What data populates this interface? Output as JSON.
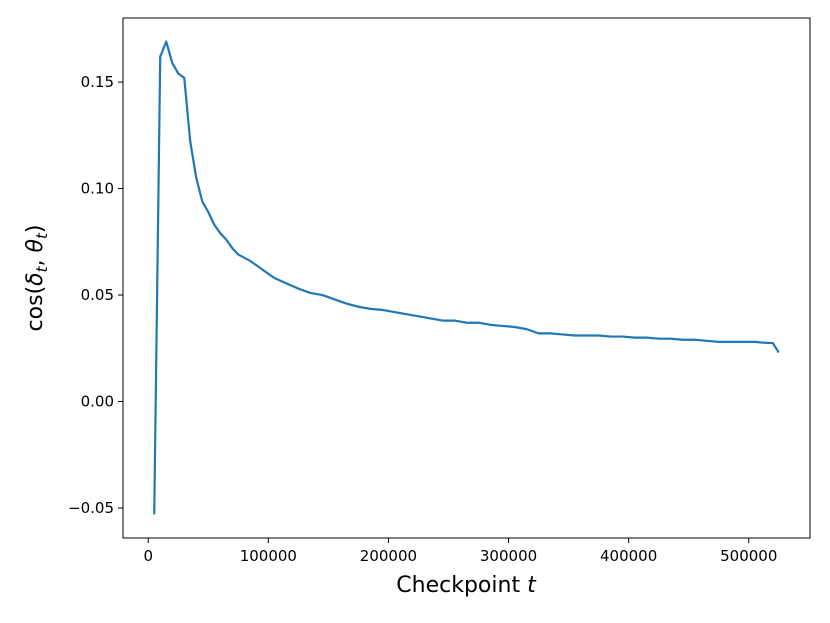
{
  "chart_data": {
    "type": "line",
    "x_label": [
      "Checkpoint ",
      "t"
    ],
    "y_label": [
      "cos(",
      "δ",
      "t",
      ", ",
      "θ",
      "t",
      ")"
    ],
    "x": [
      5000,
      10000,
      15000,
      20000,
      25000,
      30000,
      35000,
      40000,
      45000,
      50000,
      55000,
      60000,
      65000,
      70000,
      75000,
      85000,
      95000,
      105000,
      115000,
      125000,
      135000,
      145000,
      155000,
      165000,
      175000,
      185000,
      195000,
      205000,
      215000,
      225000,
      235000,
      245000,
      255000,
      265000,
      275000,
      285000,
      295000,
      305000,
      315000,
      325000,
      335000,
      345000,
      355000,
      365000,
      375000,
      385000,
      395000,
      405000,
      415000,
      425000,
      435000,
      445000,
      455000,
      465000,
      475000,
      485000,
      495000,
      505000,
      515000,
      520000,
      525000
    ],
    "series": [
      {
        "color": "#1f77b4",
        "values": [
          -0.053,
          0.162,
          0.169,
          0.159,
          0.154,
          0.152,
          0.122,
          0.105,
          0.094,
          0.089,
          0.083,
          0.079,
          0.076,
          0.072,
          0.069,
          0.066,
          0.062,
          0.058,
          0.0555,
          0.053,
          0.051,
          0.05,
          0.048,
          0.046,
          0.0445,
          0.0435,
          0.043,
          0.042,
          0.041,
          0.04,
          0.039,
          0.038,
          0.038,
          0.037,
          0.037,
          0.036,
          0.0355,
          0.035,
          0.034,
          0.032,
          0.032,
          0.0315,
          0.031,
          0.031,
          0.031,
          0.0305,
          0.0305,
          0.03,
          0.03,
          0.0295,
          0.0295,
          0.029,
          0.029,
          0.0285,
          0.028,
          0.028,
          0.028,
          0.028,
          0.0275,
          0.0275,
          0.023
        ]
      }
    ],
    "xlim": [
      -21000,
      551000
    ],
    "xticks": [
      0,
      100000,
      200000,
      300000,
      400000,
      500000
    ],
    "ylim": [
      -0.0641,
      0.1801
    ],
    "yticks": [
      {
        "value": -0.05,
        "label": "−0.05"
      },
      {
        "value": 0,
        "label": "0.00"
      },
      {
        "value": 0.05,
        "label": "0.05"
      },
      {
        "value": 0.1,
        "label": "0.10"
      },
      {
        "value": 0.15,
        "label": "0.15"
      }
    ],
    "grid": false
  }
}
